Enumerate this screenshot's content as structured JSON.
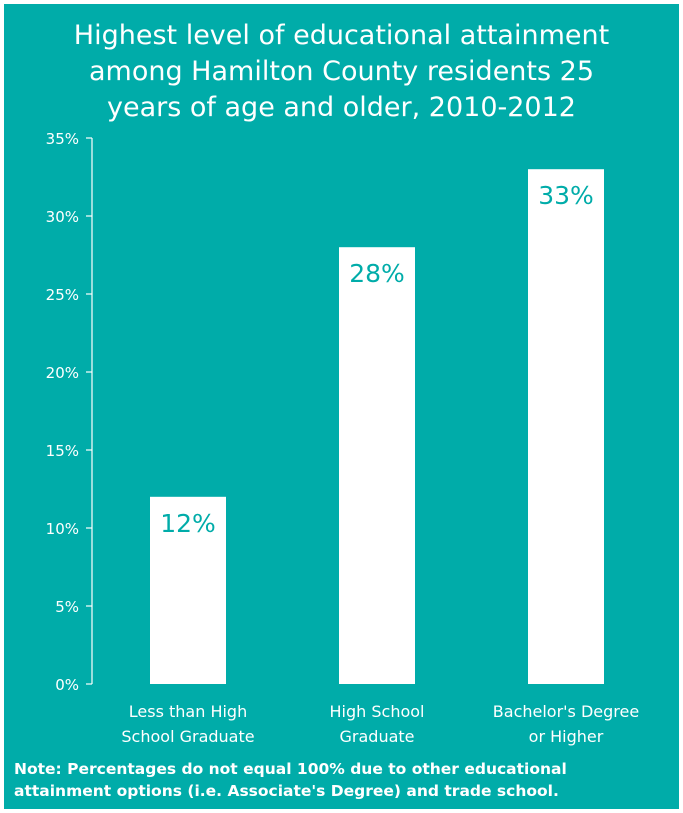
{
  "title_lines": [
    "Highest level of educational attainment",
    "among Hamilton County residents 25",
    "years of age and older, 2010-2012"
  ],
  "note_lines": [
    "Note: Percentages do not equal 100% due to other educational",
    "attainment options (i.e. Associate's Degree) and trade school."
  ],
  "colors": {
    "background": "#00aca9",
    "bar": "#ffffff",
    "data_label": "#00aca9",
    "text": "#ffffff"
  },
  "chart_data": {
    "type": "bar",
    "categories": [
      [
        "Less than High",
        "School Graduate"
      ],
      [
        "High School",
        "Graduate"
      ],
      [
        "Bachelor's Degree",
        "or Higher"
      ]
    ],
    "values": [
      12,
      28,
      33
    ],
    "data_labels": [
      "12%",
      "28%",
      "33%"
    ],
    "ylim": [
      0,
      35
    ],
    "yticks": [
      0,
      5,
      10,
      15,
      20,
      25,
      30,
      35
    ],
    "ytick_labels": [
      "0%",
      "5%",
      "10%",
      "15%",
      "20%",
      "25%",
      "30%",
      "35%"
    ],
    "grid": false,
    "legend": "none"
  }
}
